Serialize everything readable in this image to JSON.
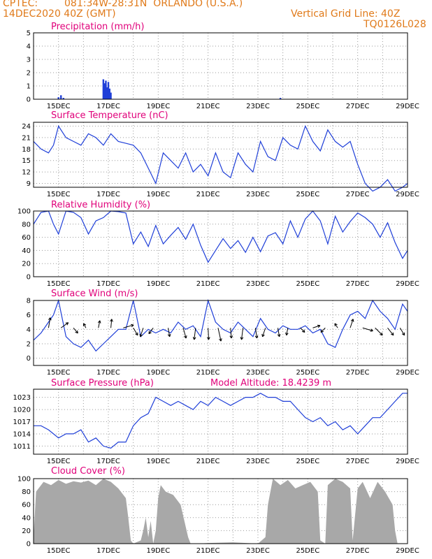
{
  "header": {
    "source": "CPTEC:",
    "location": "081:34W-28:31N  ORLANDO (U.S.A.)",
    "date": "14DEC2020 40Z (GMT)",
    "grid_line": "Vertical Grid Line: 40Z",
    "product_code": "TQ0126L028"
  },
  "colors": {
    "header": "#e07a1a",
    "title": "#e0007a",
    "line": "#1f3fd8",
    "fill": "#a8a8a8",
    "wind_arrow": "#000000"
  },
  "chart_data": [
    {
      "type": "bar",
      "title": "Precipitation (mm/h)",
      "x_ticks": [
        "15DEC",
        "17DEC",
        "19DEC",
        "21DEC",
        "23DEC",
        "25DEC",
        "27DEC",
        "29DEC"
      ],
      "xlim": [
        14.0,
        29.0
      ],
      "ylim": [
        0,
        5
      ],
      "y_ticks": [
        0,
        1,
        2,
        3,
        4,
        5
      ],
      "x": [
        15.0,
        15.1,
        15.2,
        16.8,
        16.85,
        16.9,
        16.95,
        17.0,
        17.05,
        17.1,
        23.9
      ],
      "values": [
        0.15,
        0.3,
        0.1,
        1.5,
        1.2,
        1.4,
        0.9,
        1.3,
        0.8,
        0.5,
        0.1
      ]
    },
    {
      "type": "line",
      "title": "Surface Temperature (nC)",
      "x_ticks": [
        "15DEC",
        "17DEC",
        "19DEC",
        "21DEC",
        "23DEC",
        "25DEC",
        "27DEC",
        "29DEC"
      ],
      "xlim": [
        14.0,
        29.0
      ],
      "ylim": [
        8,
        25
      ],
      "y_ticks": [
        9,
        12,
        15,
        18,
        21,
        24
      ],
      "x": [
        14.0,
        14.3,
        14.6,
        14.8,
        15.0,
        15.3,
        15.6,
        15.9,
        16.2,
        16.5,
        16.8,
        17.1,
        17.4,
        17.7,
        18.0,
        18.3,
        18.6,
        18.9,
        19.2,
        19.5,
        19.8,
        20.1,
        20.4,
        20.7,
        21.0,
        21.3,
        21.6,
        21.9,
        22.2,
        22.5,
        22.8,
        23.1,
        23.4,
        23.7,
        24.0,
        24.3,
        24.6,
        24.9,
        25.2,
        25.5,
        25.8,
        26.1,
        26.4,
        26.7,
        27.0,
        27.3,
        27.6,
        27.9,
        28.2,
        28.5,
        28.8,
        29.0
      ],
      "values": [
        20,
        18,
        17,
        19,
        24,
        21,
        20,
        19,
        22,
        21,
        19,
        22,
        20,
        19.5,
        19,
        17,
        13,
        9,
        17,
        15,
        13,
        17,
        12,
        14,
        11,
        17,
        12,
        10.5,
        17,
        14,
        12,
        20,
        16,
        15,
        21,
        19,
        18,
        24,
        20,
        17.5,
        23,
        20,
        18.5,
        20,
        14,
        9,
        7,
        8,
        10,
        7,
        8,
        9
      ]
    },
    {
      "type": "line",
      "title": "Relative Humidity (%)",
      "x_ticks": [
        "15DEC",
        "17DEC",
        "19DEC",
        "21DEC",
        "23DEC",
        "25DEC",
        "27DEC",
        "29DEC"
      ],
      "xlim": [
        14.0,
        29.0
      ],
      "ylim": [
        0,
        100
      ],
      "y_ticks": [
        0,
        20,
        40,
        60,
        80,
        100
      ],
      "x": [
        14.0,
        14.3,
        14.6,
        14.8,
        15.0,
        15.3,
        15.6,
        15.9,
        16.2,
        16.5,
        16.8,
        17.1,
        17.4,
        17.7,
        18.0,
        18.3,
        18.6,
        18.9,
        19.2,
        19.5,
        19.8,
        20.1,
        20.4,
        20.7,
        21.0,
        21.3,
        21.6,
        21.9,
        22.2,
        22.5,
        22.8,
        23.1,
        23.4,
        23.7,
        24.0,
        24.3,
        24.6,
        24.9,
        25.2,
        25.5,
        25.8,
        26.1,
        26.4,
        26.7,
        27.0,
        27.3,
        27.6,
        27.9,
        28.2,
        28.5,
        28.8,
        29.0
      ],
      "values": [
        80,
        98,
        100,
        80,
        65,
        100,
        98,
        90,
        65,
        85,
        90,
        100,
        99,
        97,
        50,
        68,
        46,
        78,
        50,
        63,
        75,
        57,
        80,
        48,
        22,
        40,
        58,
        43,
        55,
        37,
        60,
        38,
        62,
        67,
        50,
        85,
        60,
        88,
        100,
        85,
        50,
        92,
        68,
        84,
        97,
        90,
        80,
        60,
        82,
        52,
        28,
        40
      ]
    },
    {
      "type": "line",
      "title": "Surface Wind (m/s)",
      "x_ticks": [
        "15DEC",
        "17DEC",
        "19DEC",
        "21DEC",
        "23DEC",
        "25DEC",
        "27DEC",
        "29DEC"
      ],
      "xlim": [
        14.0,
        29.0
      ],
      "ylim": [
        -1,
        8
      ],
      "y_ticks": [
        0,
        2,
        4,
        6,
        8
      ],
      "x": [
        14.0,
        14.3,
        14.6,
        14.8,
        15.0,
        15.3,
        15.6,
        15.9,
        16.2,
        16.5,
        16.8,
        17.1,
        17.4,
        17.7,
        18.0,
        18.3,
        18.6,
        18.9,
        19.2,
        19.5,
        19.8,
        20.1,
        20.4,
        20.7,
        21.0,
        21.3,
        21.6,
        21.9,
        22.2,
        22.5,
        22.8,
        23.1,
        23.4,
        23.7,
        24.0,
        24.3,
        24.6,
        24.9,
        25.2,
        25.5,
        25.8,
        26.1,
        26.4,
        26.7,
        27.0,
        27.3,
        27.6,
        27.9,
        28.2,
        28.5,
        28.8,
        29.0
      ],
      "values": [
        2.5,
        3.5,
        5,
        6,
        8,
        3,
        2,
        1.5,
        2.5,
        1,
        2,
        3,
        4,
        4,
        8,
        3,
        4,
        3.5,
        4,
        3.5,
        5,
        4,
        4.5,
        3,
        8,
        5,
        4,
        3.5,
        5,
        4,
        3,
        5.5,
        4,
        3.5,
        4.5,
        4,
        4,
        4.5,
        3.5,
        4,
        2,
        1.5,
        4,
        6,
        6.5,
        5.5,
        8,
        6.5,
        5.5,
        4,
        7.5,
        6.5
      ],
      "wind_arrows": [
        {
          "x": 14.6,
          "u": 0.6,
          "v": 3.5
        },
        {
          "x": 15.1,
          "u": 2.5,
          "v": 1.8
        },
        {
          "x": 15.6,
          "u": 1.5,
          "v": -1.8
        },
        {
          "x": 16.1,
          "u": -0.8,
          "v": 1.5
        },
        {
          "x": 16.6,
          "u": 0.5,
          "v": 2.5
        },
        {
          "x": 17.1,
          "u": 0.3,
          "v": 3.0
        },
        {
          "x": 17.6,
          "u": 3.5,
          "v": 1.0
        },
        {
          "x": 18.0,
          "u": 1.5,
          "v": -2.5
        },
        {
          "x": 18.4,
          "u": -1.0,
          "v": -3.0
        },
        {
          "x": 18.8,
          "u": -1.5,
          "v": -2.0
        },
        {
          "x": 19.4,
          "u": 0.5,
          "v": -3.0
        },
        {
          "x": 20.0,
          "u": 1.0,
          "v": -3.5
        },
        {
          "x": 20.5,
          "u": -0.5,
          "v": -4.0
        },
        {
          "x": 21.0,
          "u": 0.2,
          "v": -4.0
        },
        {
          "x": 21.4,
          "u": 1.0,
          "v": -4.5
        },
        {
          "x": 21.9,
          "u": 0.3,
          "v": -3.5
        },
        {
          "x": 22.4,
          "u": -0.5,
          "v": -4.0
        },
        {
          "x": 22.9,
          "u": 0.5,
          "v": -3.5
        },
        {
          "x": 23.3,
          "u": -1.0,
          "v": -3.0
        },
        {
          "x": 23.8,
          "u": 0.5,
          "v": -3.0
        },
        {
          "x": 24.2,
          "u": -0.5,
          "v": -2.5
        },
        {
          "x": 24.7,
          "u": 1.5,
          "v": -1.5
        },
        {
          "x": 25.2,
          "u": 2.5,
          "v": 0.8
        },
        {
          "x": 25.7,
          "u": -1.5,
          "v": -1.5
        },
        {
          "x": 26.2,
          "u": -1.0,
          "v": 1.5
        },
        {
          "x": 26.7,
          "u": 1.0,
          "v": 3.0
        },
        {
          "x": 27.2,
          "u": 3.5,
          "v": -1.0
        },
        {
          "x": 27.7,
          "u": 2.5,
          "v": -2.5
        },
        {
          "x": 28.2,
          "u": 2.0,
          "v": -2.5
        },
        {
          "x": 28.7,
          "u": 1.5,
          "v": -2.5
        }
      ]
    },
    {
      "type": "line",
      "title": "Surface Pressure (hPa)",
      "annotation": "Model Altitude: 18.4239 m",
      "x_ticks": [
        "15DEC",
        "17DEC",
        "19DEC",
        "21DEC",
        "23DEC",
        "25DEC",
        "27DEC",
        "29DEC"
      ],
      "xlim": [
        14.0,
        29.0
      ],
      "ylim": [
        1009,
        1025
      ],
      "y_ticks": [
        1011,
        1014,
        1017,
        1020,
        1023
      ],
      "x": [
        14.0,
        14.3,
        14.6,
        14.8,
        15.0,
        15.3,
        15.6,
        15.9,
        16.2,
        16.5,
        16.8,
        17.1,
        17.4,
        17.7,
        18.0,
        18.3,
        18.6,
        18.9,
        19.2,
        19.5,
        19.8,
        20.1,
        20.4,
        20.7,
        21.0,
        21.3,
        21.6,
        21.9,
        22.2,
        22.5,
        22.8,
        23.1,
        23.4,
        23.7,
        24.0,
        24.3,
        24.6,
        24.9,
        25.2,
        25.5,
        25.8,
        26.1,
        26.4,
        26.7,
        27.0,
        27.3,
        27.6,
        27.9,
        28.2,
        28.5,
        28.8,
        29.0
      ],
      "values": [
        1016,
        1016,
        1015,
        1014,
        1013,
        1014,
        1014,
        1015,
        1012,
        1013,
        1011,
        1010.5,
        1012,
        1012,
        1016,
        1018,
        1019,
        1023,
        1022,
        1021,
        1022,
        1021,
        1020,
        1022,
        1021,
        1023,
        1022,
        1021,
        1022,
        1023,
        1023,
        1024,
        1023,
        1023,
        1022,
        1022,
        1020,
        1018,
        1017,
        1018,
        1016,
        1017,
        1015,
        1016,
        1014,
        1016,
        1018,
        1018,
        1020,
        1022,
        1024,
        1024
      ]
    },
    {
      "type": "area",
      "title": "Cloud Cover (%)",
      "x_ticks": [
        "15DEC",
        "17DEC",
        "19DEC",
        "21DEC",
        "23DEC",
        "25DEC",
        "27DEC",
        "29DEC"
      ],
      "xlim": [
        14.0,
        29.0
      ],
      "ylim": [
        0,
        100
      ],
      "y_ticks": [
        0,
        20,
        40,
        60,
        80,
        100
      ],
      "x": [
        14.0,
        14.1,
        14.4,
        14.7,
        15.0,
        15.3,
        15.6,
        15.9,
        16.2,
        16.5,
        16.8,
        17.1,
        17.4,
        17.7,
        17.8,
        17.9,
        18.0,
        18.3,
        18.4,
        18.5,
        18.6,
        18.7,
        18.8,
        18.9,
        19.0,
        19.1,
        19.2,
        19.3,
        19.6,
        19.9,
        20.2,
        20.3,
        20.6,
        21.0,
        22.0,
        23.0,
        23.3,
        23.4,
        23.5,
        23.6,
        23.9,
        24.2,
        24.5,
        24.8,
        25.1,
        25.4,
        25.5,
        25.7,
        25.8,
        26.1,
        26.4,
        26.7,
        26.8,
        27.0,
        27.2,
        27.5,
        27.8,
        28.1,
        28.4,
        28.5,
        28.6,
        28.9,
        29.0
      ],
      "values": [
        10,
        80,
        95,
        90,
        98,
        92,
        96,
        94,
        97,
        90,
        100,
        95,
        85,
        70,
        40,
        5,
        0,
        5,
        20,
        40,
        10,
        35,
        0,
        20,
        70,
        90,
        85,
        80,
        75,
        60,
        10,
        0,
        0,
        1,
        2,
        0,
        10,
        60,
        80,
        100,
        90,
        98,
        85,
        90,
        95,
        80,
        5,
        0,
        90,
        100,
        95,
        85,
        5,
        85,
        95,
        70,
        95,
        80,
        60,
        20,
        0,
        0,
        0
      ]
    }
  ]
}
